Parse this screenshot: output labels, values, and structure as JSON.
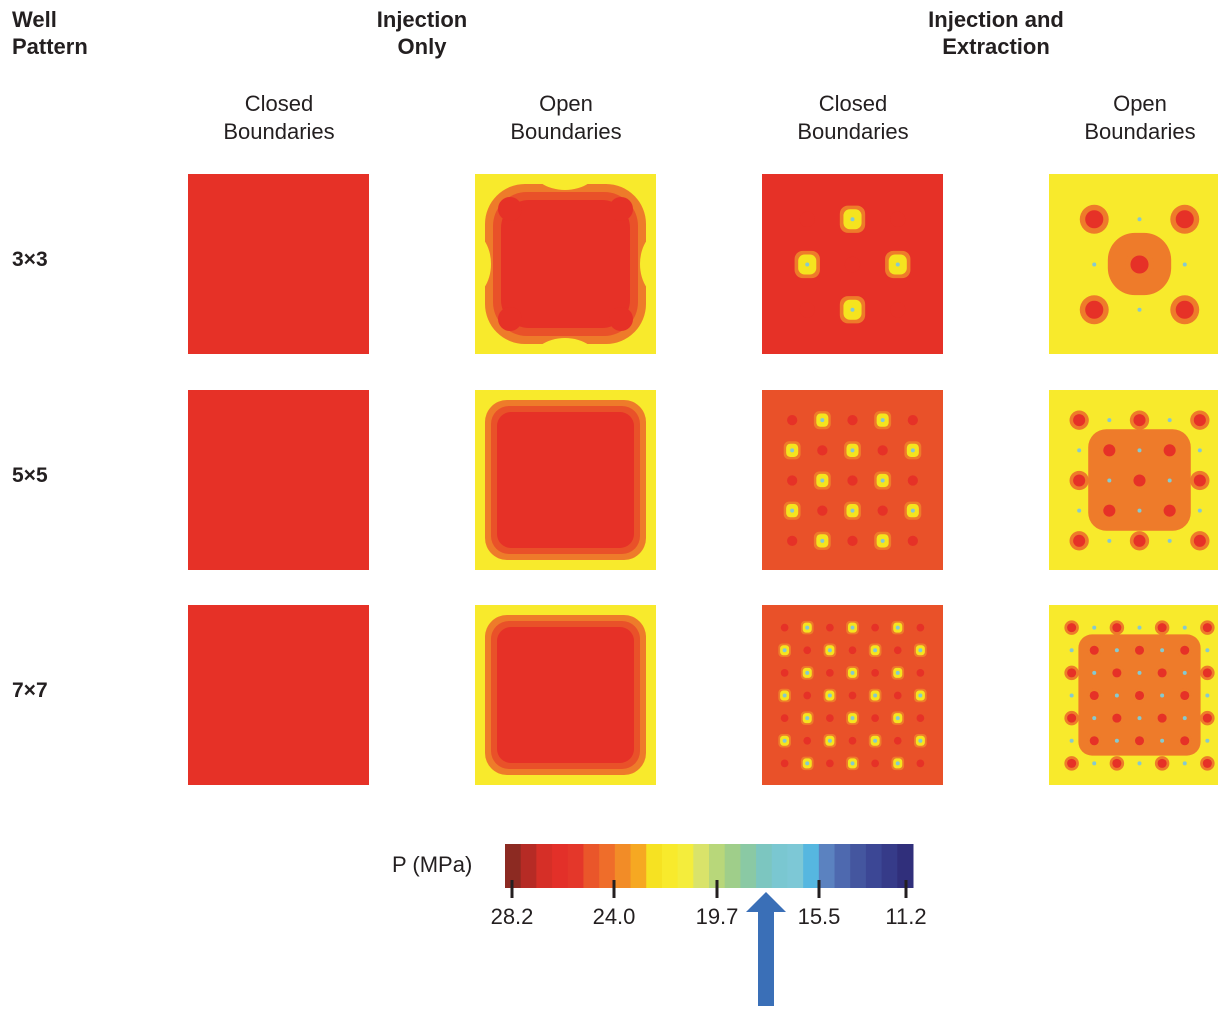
{
  "headers": {
    "well_pattern": [
      "Well",
      "Pattern"
    ],
    "injection_only": [
      "Injection",
      "Only"
    ],
    "injection_extraction": [
      "Injection and",
      "Extraction"
    ],
    "columns": [
      [
        "Closed",
        "Boundaries"
      ],
      [
        "Open",
        "Boundaries"
      ],
      [
        "Closed",
        "Boundaries"
      ],
      [
        "Open",
        "Boundaries"
      ]
    ]
  },
  "rows": [
    "3×3",
    "5×5",
    "7×7"
  ],
  "colorbar": {
    "label": "P (MPa)",
    "ticks": [
      "28.2",
      "24.0",
      "19.7",
      "15.5",
      "11.2"
    ],
    "colors": [
      "#8c2a22",
      "#b62b25",
      "#d62f27",
      "#e33029",
      "#e4372a",
      "#ea562a",
      "#ef6d2a",
      "#f28c27",
      "#f6a822",
      "#f6e222",
      "#f8ea2c",
      "#f4ed3c",
      "#d9e36a",
      "#b8d77a",
      "#9fce8a",
      "#8ac9a4",
      "#7cc6c0",
      "#7ac7d1",
      "#7dc8d6",
      "#56b7e0",
      "#5b82c0",
      "#4e69af",
      "#44569f",
      "#3c4795",
      "#363b89",
      "#302f7b"
    ],
    "arrow_color": "#3a6fb7"
  },
  "palette": {
    "dark_red": "#e63127",
    "red": "#e63127",
    "orange_red": "#e95129",
    "orange": "#ee7b2a",
    "yellow": "#f5e41f",
    "light_yellow": "#f8ea2c",
    "cyan": "#86c9cf"
  }
}
